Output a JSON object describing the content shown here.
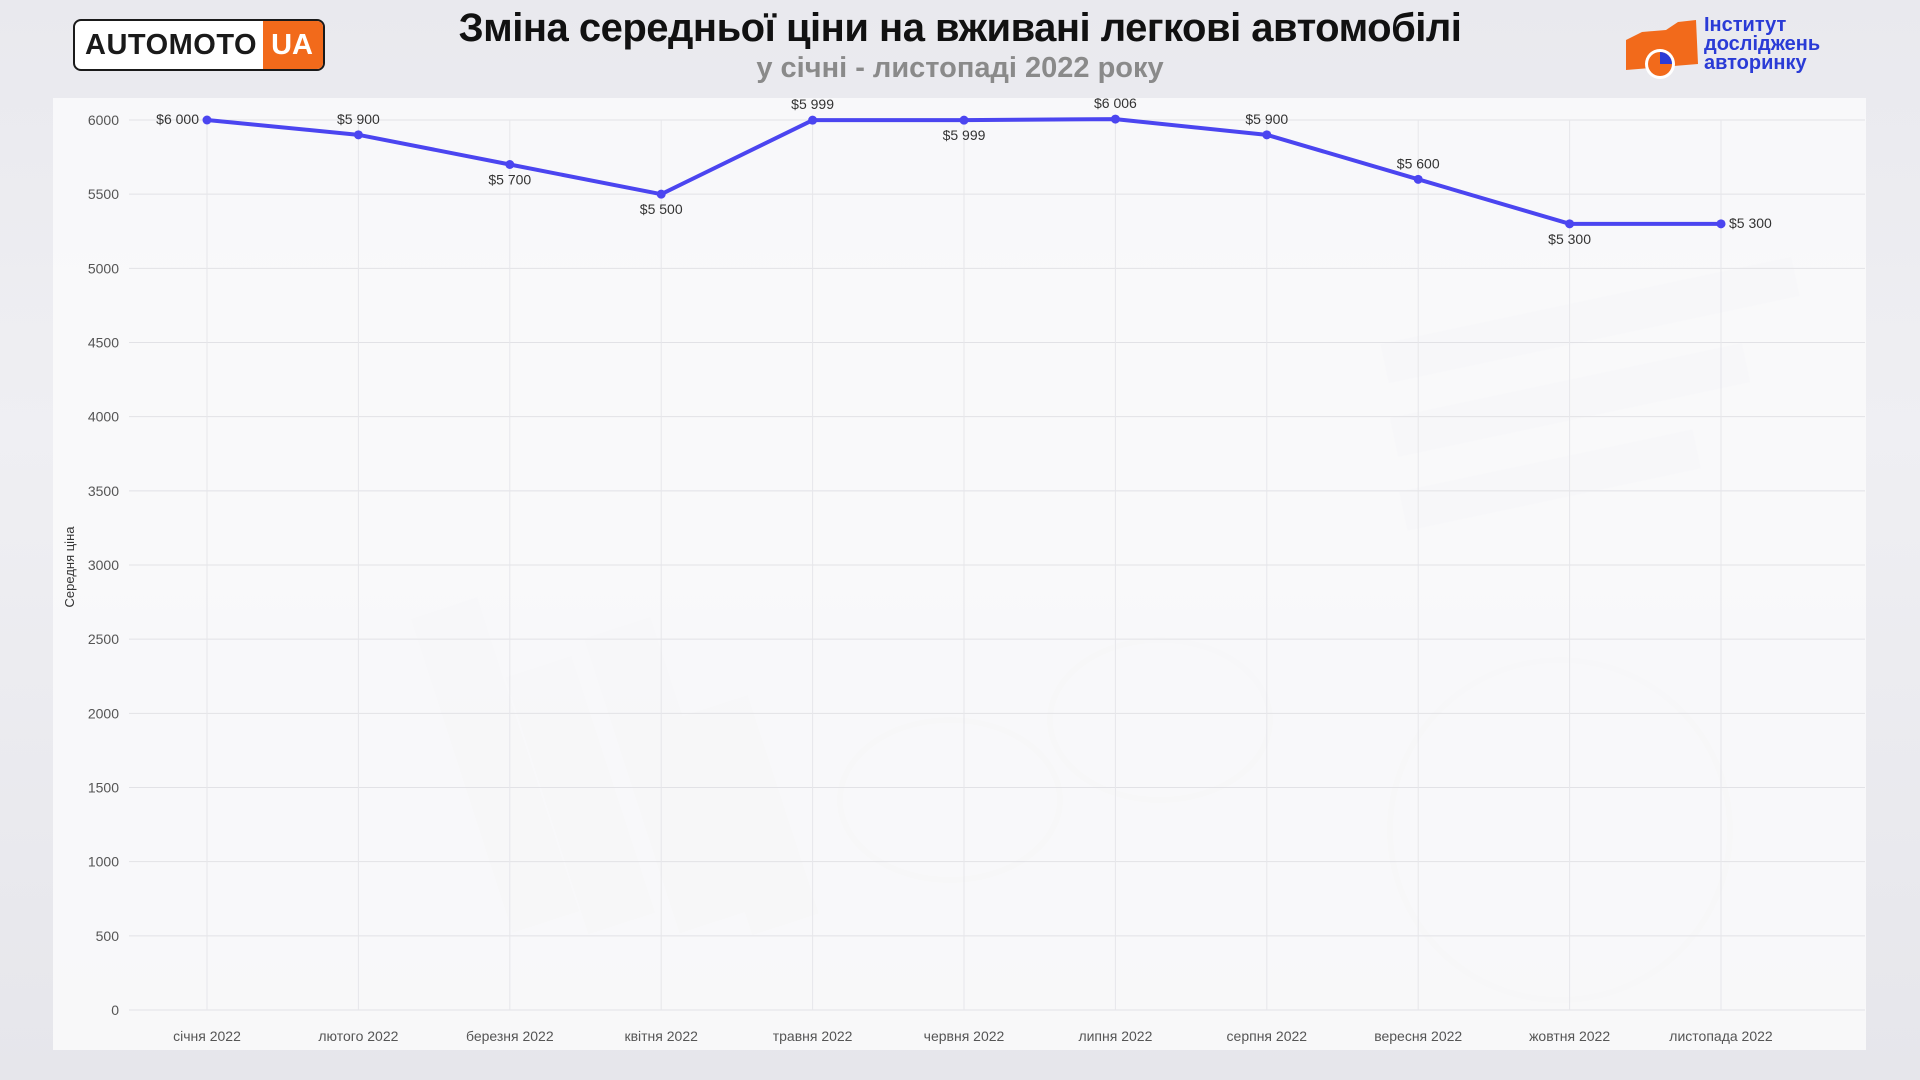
{
  "header": {
    "logo_main": "AUTOMOTO",
    "logo_accent": "UA",
    "title": "Зміна середньої ціни на вживані легкові автомобілі",
    "subtitle": "у січні - листопаді 2022 року",
    "institute_line1": "Інститут",
    "institute_line2": "досліджень",
    "institute_line3": "авторинку"
  },
  "colors": {
    "series": "#4b45f0",
    "logo_accent": "#f26a1b",
    "institute": "#2a3bd6"
  },
  "chart_data": {
    "type": "line",
    "title": "Зміна середньої ціни на вживані легкові автомобілі",
    "subtitle": "у січні - листопаді 2022 року",
    "xlabel": "",
    "ylabel": "Середня ціна",
    "ylim": [
      0,
      6000
    ],
    "yticks": [
      "0",
      "500",
      "1000",
      "1500",
      "2000",
      "2500",
      "3000",
      "3500",
      "4000",
      "4500",
      "5000",
      "5500",
      "6000"
    ],
    "grid": true,
    "categories": [
      "січня 2022",
      "лютого 2022",
      "березня 2022",
      "квітня 2022",
      "травня 2022",
      "червня 2022",
      "липня 2022",
      "серпня 2022",
      "вересня 2022",
      "жовтня 2022",
      "листопада 2022"
    ],
    "series": [
      {
        "values": [
          6000,
          5900,
          5700,
          5500,
          5999,
          5999,
          6006,
          5900,
          5600,
          5300,
          5300
        ],
        "labels": [
          "$6 000",
          "$5 900",
          "$5 700",
          "$5 500",
          "$5 999",
          "$5 999",
          "$6 006",
          "$5 900",
          "$5 600",
          "$5 300",
          "$5 300"
        ],
        "label_positions": [
          "left",
          "above",
          "below",
          "below",
          "above",
          "below",
          "above",
          "above",
          "above",
          "below",
          "right"
        ]
      }
    ]
  }
}
